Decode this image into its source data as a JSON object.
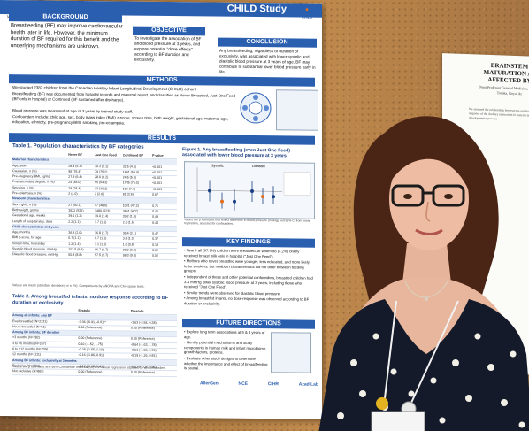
{
  "poster": {
    "title": "CHILD Study",
    "authors": "Malcolm R. Sears, and Meghan B. Azad",
    "logo": "CHILD",
    "background": {
      "header": "BACKGROUND",
      "text": "Breastfeeding (BF) may improve cardiovascular health later in life. However, the minimum duration of BF required for this benefit and the underlying mechanisms are unknown."
    },
    "objective": {
      "header": "OBJECTIVE",
      "text": "To investigate the association of BF and blood pressure at 3 years, and explore potential \"dose effects\" according to BF duration and exclusivity."
    },
    "conclusion": {
      "header": "CONCLUSION",
      "text": "Any breastfeeding, regardless of duration or exclusivity, was associated with lower systolic and diastolic blood pressure at 3 years of age. BF may contribute to substantial lower blood pressure early in life."
    },
    "methods": {
      "header": "METHODS",
      "intro": "We studied 2382 children from the Canadian Healthy Infant Longitudinal Development (CHILD) cohort.",
      "bullet1": "Breastfeeding (BF) was documented from hospital records and maternal report, and classified as Never Breastfed, Just One Feed (BF only in hospital) or Continued (BF sustained after discharge).",
      "bullet2": "Blood pressure was measured at age of 3 years by trained study staff.",
      "bullet3": "Confounders include: child age, sex, body mass index (BMI) z-score, screen time, birth weight, gestational age; maternal age, education, ethnicity, pre-pregnancy BMI, smoking, pre-eclampsia."
    },
    "results": {
      "header": "RESULTS",
      "table1_title": "Table 1. Population characteristics by BF categories",
      "table1_cols": [
        "",
        "Never BF",
        "Just One Feed",
        "Continued BF",
        "P value"
      ],
      "table1_rows": [
        [
          "Maternal characteristics",
          "",
          "",
          "",
          ""
        ],
        [
          "Age, years",
          "28.9 (5.3)",
          "30.3 (5.1)",
          "32.6 (4.5)",
          "<0.001"
        ],
        [
          "Caucasian, n (%)",
          "95 (75.4)",
          "79 (75.2)",
          "1401 (64.4)",
          "<0.001"
        ],
        [
          "Pre-pregnancy BMI, kg/m2",
          "27.8 (6.4)",
          "28.0 (6.2)",
          "24.5 (5.3)",
          "<0.001"
        ],
        [
          "Post secondary degree, n (%)",
          "24 (48.0)",
          "55 (54.3)",
          "1785 (75.0)",
          "<0.001"
        ],
        [
          "Smoking, n (%)",
          "19 (28.4)",
          "13 (16.2)",
          "100 (7.4)",
          "<0.001"
        ],
        [
          "Pre-eclampsia, n (%)",
          "2 (4.0)",
          "2 (2.0)",
          "81 (3.6)",
          "0.67"
        ],
        [
          "Newborn characteristics",
          "",
          "",
          "",
          ""
        ],
        [
          "Sex = girls, n (%)",
          "27 (50.1)",
          "47 (48.0)",
          "1031 (47.2)",
          "0.71"
        ],
        [
          "Birthweight, grams",
          "3522 (532)",
          "3480 (523)",
          "3451 (477)",
          "0.42"
        ],
        [
          "Gestational age, weeks",
          "39.1 (1.2)",
          "39.0 (1.4)",
          "39.2 (1.4)",
          "0.49"
        ],
        [
          "Length of hospital stay, days",
          "2.2 (1.1)",
          "1.7 (1.1)",
          "2.3 (1.6)",
          "0.44"
        ],
        [
          "Child characteristics at 3 years",
          "",
          "",
          "",
          ""
        ],
        [
          "Age, months",
          "36.8 (2.0)",
          "36.8 (1.7)",
          "36.4 (2.1)",
          "0.47"
        ],
        [
          "BMI z-score, for age",
          "0.7 (1.1)",
          "0.7 (1.1)",
          "0.6 (1.0)",
          "0.37"
        ],
        [
          "Screen time, hours/day",
          "1.2 (1.4)",
          "1.1 (1.0)",
          "1.0 (0.8)",
          "0.18"
        ],
        [
          "Systolic blood pressure, mmHg",
          "102.5 (9.5)",
          "96.7 (9.7)",
          "98.0 (9.4)",
          "0.02"
        ],
        [
          "Diastolic blood pressure, mmHg",
          "60.8 (8.8)",
          "57.5 (9.7)",
          "58.3 (9.8)",
          "0.02"
        ]
      ],
      "table1_note": "Values are mean (standard deviation) or n (%). Comparisons by ANOVA and Chi-square tests.",
      "table2_title": "Table 2. Among breastfed infants, no dose response according to BF duration or exclusivity",
      "table2_cols": [
        "",
        "Systolic",
        "Diastolic"
      ],
      "table2_rows": [
        [
          "Among all infants: Any BF",
          "",
          ""
        ],
        [
          "Ever breastfed (N=2331)",
          "-3.36 (-6.91, -0.01)*",
          "-1.63 (-3.54, 0.28)"
        ],
        [
          "Never breastfed (N=51)",
          "0.00 (Reference)",
          "0.00 (Reference)"
        ],
        [
          "Among BF infants: BF duration",
          "",
          ""
        ],
        [
          "<3 months (N=282)",
          "0.00 (Reference)",
          "0.00 (Reference)"
        ],
        [
          "3 to <6 months (N=267)",
          "0.10 (-1.52, 1.75)",
          "-0.64 (-1.63, 1.78)"
        ],
        [
          "6 to <12 months (N=709)",
          "-0.28 (-1.55, 1.10)",
          "-0.51 (-1.56, 0.99)"
        ],
        [
          "12 months (N=1111)",
          "-0.16 (-1.86, 0.91)",
          "-0.19 (-1.26, 0.81)"
        ],
        [
          "Among BF infants: exclusivity at 3 months",
          "",
          ""
        ],
        [
          "Exclusive (N=1462)",
          "-0.17 (-1.28, 0.41)",
          "-0.03 (-1.03, 0.96)"
        ],
        [
          "Not exclusive (N=869)",
          "0.00 (Reference)",
          "0.00 (Reference)"
        ]
      ],
      "table2_note": "Values are β estimates and 95% Confidence Intervals (CI) from linear regression adjusted for all confounders.",
      "figure_title": "Figure 1. Any breastfeeding (even Just One Feed) associated with lower blood pressure at 3 years",
      "figure_labels": [
        "Systolic",
        "Diastolic"
      ],
      "figure_note": "Values are β estimates that reflect difference in blood pressure (mmHg) and 95% CI from linear regression, adjusted for confounders."
    },
    "key_findings": {
      "header": "KEY FINDINGS",
      "items": [
        "Nearly all (97.9%) children were breastfed, of whom 98 (4.2%) briefly received breast milk only in hospital (\"Just One Feed\").",
        "Mothers who never breastfed were younger, less educated, and more likely to be smokers, but newborn characteristics did not differ between feeding groups.",
        "Independent of these and other potential confounders, breastfed children had 3-4 mmHg lower systolic blood pressure at 3 years, including those who received \"Just One Feed\".",
        "Similar trends were observed for diastolic blood pressure.",
        "Among breastfed infants, no dose-response was observed according to BF duration or exclusivity."
      ]
    },
    "future": {
      "header": "FUTURE DIRECTIONS",
      "items": [
        "Explore long term associations at 5 & 8 years of age.",
        "Identify potential mechanisms and study components in human milk and infant microbiome, growth factors, proteins.",
        "Evaluate other study designs to determine whether the importance and effect of breastfeeding is causal."
      ]
    },
    "sponsors": [
      "AllerGen",
      "NCE",
      "CIHR",
      "Azad Lab"
    ]
  },
  "poster2": {
    "title": "BRAINSTEM MATURATION AS AFFECTED BY",
    "authors": "Nora Professor General Medicine, Hajime Tanaka, Royal Ac",
    "body": "We assessed the relationship between the auditory brainstem response of the Audtery maturation in preterm infants developmental process"
  },
  "colors": {
    "poster_blue": "#2a5fb0",
    "cork": "#a8773f",
    "dress": "#141a2a",
    "hair": "#4a2414"
  }
}
